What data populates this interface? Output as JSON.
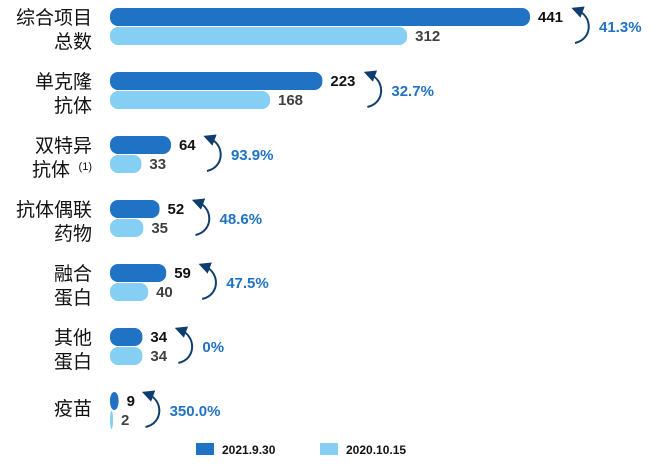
{
  "chart_data": {
    "type": "bar",
    "orientation": "horizontal",
    "title": "",
    "xlabel": "",
    "ylabel": "",
    "grid": false,
    "legend_position": "bottom",
    "categories": [
      {
        "lines": [
          "综合项目",
          "总数"
        ],
        "note": ""
      },
      {
        "lines": [
          "单克隆",
          "抗体"
        ],
        "note": ""
      },
      {
        "lines": [
          "双特异",
          "抗体"
        ],
        "note": "(1)"
      },
      {
        "lines": [
          "抗体偶联",
          "药物"
        ],
        "note": ""
      },
      {
        "lines": [
          "融合",
          "蛋白"
        ],
        "note": ""
      },
      {
        "lines": [
          "其他",
          "蛋白"
        ],
        "note": ""
      },
      {
        "lines": [
          "疫苗"
        ],
        "note": ""
      }
    ],
    "series": [
      {
        "name": "2021.9.30",
        "color": "#1F72C4",
        "values": [
          441,
          223,
          64,
          52,
          59,
          34,
          9
        ]
      },
      {
        "name": "2020.10.15",
        "color": "#84CFF3",
        "values": [
          312,
          168,
          33,
          35,
          40,
          34,
          2
        ]
      }
    ],
    "growth_labels": [
      "41.3%",
      "32.7%",
      "93.9%",
      "48.6%",
      "47.5%",
      "0%",
      "350.0%"
    ],
    "growth_color": "#1F72C4",
    "arrow_color": "#0F3E6E",
    "xlim": [
      0,
      441
    ]
  }
}
